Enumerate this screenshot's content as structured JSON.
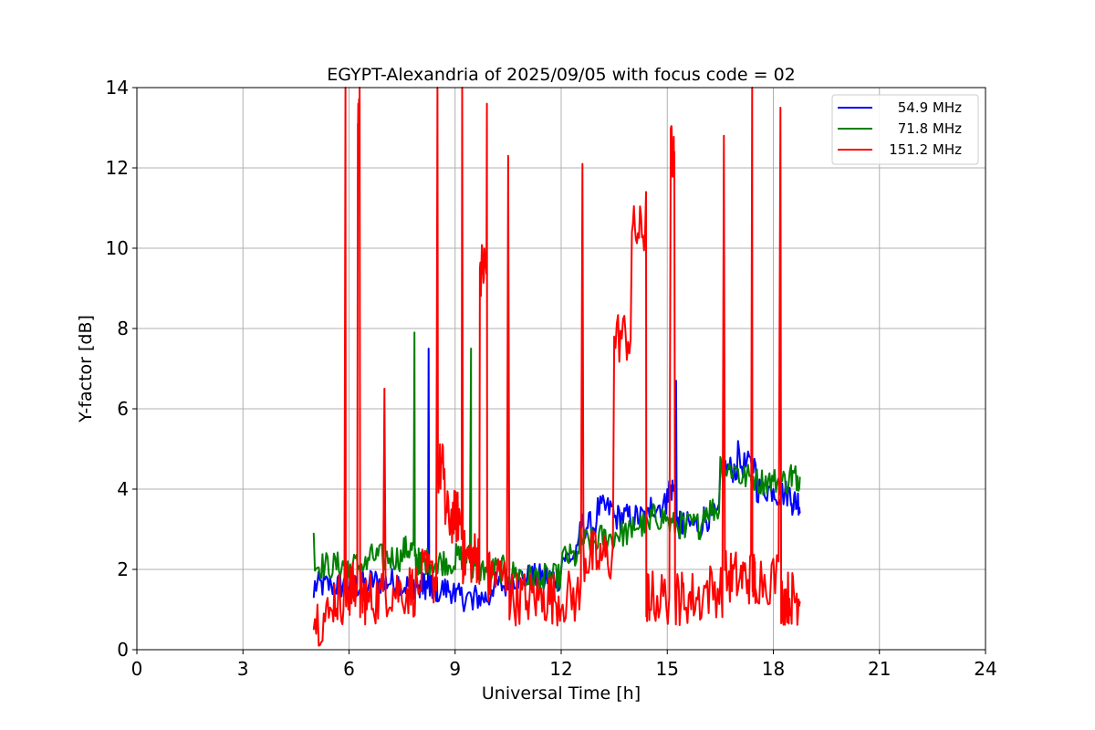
{
  "chart_data": {
    "type": "line",
    "title": "EGYPT-Alexandria of 2025/09/05 with focus code = 02",
    "xlabel": "Universal Time [h]",
    "ylabel": "Y-factor [dB]",
    "xlim": [
      0,
      24
    ],
    "ylim": [
      0,
      14
    ],
    "x_ticks": [
      0,
      3,
      6,
      9,
      12,
      15,
      18,
      21,
      24
    ],
    "y_ticks": [
      0,
      2,
      4,
      6,
      8,
      10,
      12,
      14
    ],
    "grid": true,
    "legend_position": "top-right",
    "series": [
      {
        "name": "54.9 MHz",
        "color": "#0000ff",
        "points": [
          [
            5.0,
            1.3
          ],
          [
            5.5,
            1.6
          ],
          [
            6.0,
            1.3
          ],
          [
            6.5,
            1.4
          ],
          [
            7.0,
            1.5
          ],
          [
            7.5,
            1.4
          ],
          [
            8.0,
            1.3
          ],
          [
            8.25,
            7.5
          ],
          [
            8.5,
            1.2
          ],
          [
            9.0,
            1.2
          ],
          [
            9.5,
            1.0
          ],
          [
            10.0,
            1.3
          ],
          [
            10.5,
            1.5
          ],
          [
            11.0,
            1.6
          ],
          [
            11.5,
            1.5
          ],
          [
            12.0,
            2.0
          ],
          [
            12.5,
            2.8
          ],
          [
            13.0,
            3.2
          ],
          [
            13.5,
            3.3
          ],
          [
            14.0,
            3.0
          ],
          [
            14.5,
            3.3
          ],
          [
            15.0,
            4.0
          ],
          [
            15.25,
            6.7
          ],
          [
            15.5,
            2.8
          ],
          [
            16.0,
            3.0
          ],
          [
            16.5,
            4.5
          ],
          [
            17.0,
            5.2
          ],
          [
            17.5,
            4.6
          ],
          [
            18.0,
            4.0
          ],
          [
            18.5,
            3.6
          ],
          [
            18.75,
            3.4
          ]
        ]
      },
      {
        "name": "71.8 MHz",
        "color": "#008000",
        "points": [
          [
            5.0,
            2.9
          ],
          [
            5.5,
            1.8
          ],
          [
            6.0,
            1.8
          ],
          [
            6.5,
            2.0
          ],
          [
            7.0,
            2.0
          ],
          [
            7.5,
            2.2
          ],
          [
            7.85,
            7.9
          ],
          [
            8.0,
            1.9
          ],
          [
            8.5,
            1.9
          ],
          [
            9.0,
            2.0
          ],
          [
            9.45,
            7.5
          ],
          [
            9.5,
            1.8
          ],
          [
            10.0,
            1.7
          ],
          [
            10.5,
            1.8
          ],
          [
            11.0,
            1.6
          ],
          [
            11.5,
            1.5
          ],
          [
            12.0,
            2.0
          ],
          [
            12.5,
            2.4
          ],
          [
            13.0,
            2.5
          ],
          [
            13.5,
            2.6
          ],
          [
            14.0,
            2.8
          ],
          [
            14.5,
            3.0
          ],
          [
            15.0,
            3.3
          ],
          [
            15.5,
            2.8
          ],
          [
            16.0,
            3.2
          ],
          [
            16.5,
            4.8
          ],
          [
            17.0,
            4.5
          ],
          [
            17.5,
            4.3
          ],
          [
            18.0,
            4.2
          ],
          [
            18.5,
            4.6
          ],
          [
            18.75,
            4.3
          ]
        ]
      },
      {
        "name": "151.2 MHz",
        "color": "#ff0000",
        "points": [
          [
            5.0,
            0.5
          ],
          [
            5.5,
            1.0
          ],
          [
            5.9,
            14.0
          ],
          [
            6.0,
            1.2
          ],
          [
            6.25,
            13.1
          ],
          [
            6.3,
            14.0
          ],
          [
            6.5,
            1.0
          ],
          [
            7.0,
            6.5
          ],
          [
            7.5,
            1.2
          ],
          [
            8.0,
            1.5
          ],
          [
            8.5,
            14.0
          ],
          [
            8.7,
            4.5
          ],
          [
            9.0,
            3.0
          ],
          [
            9.2,
            14.0
          ],
          [
            9.5,
            2.0
          ],
          [
            9.7,
            9.5
          ],
          [
            9.9,
            13.6
          ],
          [
            10.0,
            1.5
          ],
          [
            10.5,
            12.3
          ],
          [
            11.0,
            1.0
          ],
          [
            11.5,
            1.5
          ],
          [
            12.0,
            1.0
          ],
          [
            12.6,
            12.1
          ],
          [
            13.0,
            2.0
          ],
          [
            13.5,
            7.8
          ],
          [
            14.0,
            10.4
          ],
          [
            14.4,
            11.4
          ],
          [
            14.5,
            1.0
          ],
          [
            15.1,
            13.0
          ],
          [
            15.2,
            12.4
          ],
          [
            15.5,
            1.0
          ],
          [
            16.0,
            1.2
          ],
          [
            16.6,
            12.8
          ],
          [
            17.0,
            1.5
          ],
          [
            17.4,
            14.0
          ],
          [
            17.5,
            1.5
          ],
          [
            18.2,
            13.5
          ],
          [
            18.5,
            1.0
          ],
          [
            18.75,
            1.2
          ]
        ]
      }
    ]
  }
}
